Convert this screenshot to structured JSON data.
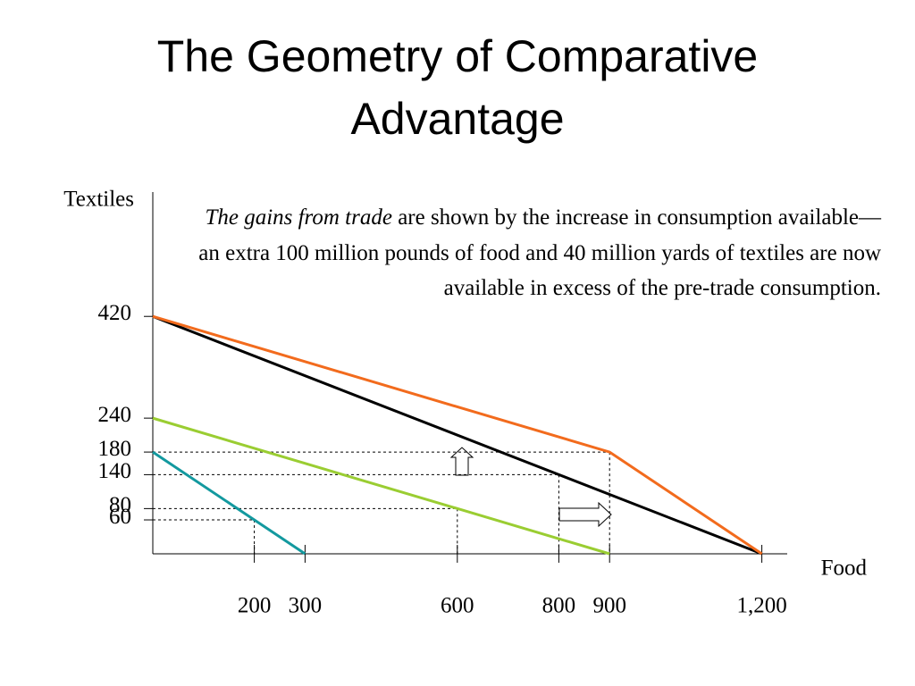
{
  "chart_data": {
    "type": "line",
    "title": "The Geometry of Comparative Advantage",
    "x_label": "Food",
    "y_label": "Textiles",
    "annotation_italic": "The gains from trade",
    "annotation": "are shown by the increase in consumption available—an extra 100 million pounds of food and 40 million yards of textiles are now available in excess of the pre-trade consumption.",
    "xlim": [
      0,
      1250
    ],
    "ylim": [
      0,
      640
    ],
    "xticks": [
      200,
      300,
      600,
      800,
      900,
      {
        "value": 1200,
        "label": "1,200"
      }
    ],
    "yticks": [
      60,
      80,
      140,
      180,
      240,
      420
    ],
    "series": [
      {
        "color": "#13999f",
        "x": [
          0,
          300
        ],
        "values": [
          180,
          0
        ]
      },
      {
        "color": "#9acd32",
        "x": [
          0,
          900
        ],
        "values": [
          240,
          0
        ]
      },
      {
        "color": "#000000",
        "x": [
          0,
          1200
        ],
        "values": [
          420,
          0
        ]
      },
      {
        "color": "#f26b1d",
        "x": [
          0,
          900,
          1200
        ],
        "values": [
          420,
          180,
          0
        ]
      }
    ],
    "guides": [
      [
        200,
        60
      ],
      [
        600,
        80
      ],
      [
        800,
        140
      ],
      [
        900,
        180
      ]
    ]
  }
}
